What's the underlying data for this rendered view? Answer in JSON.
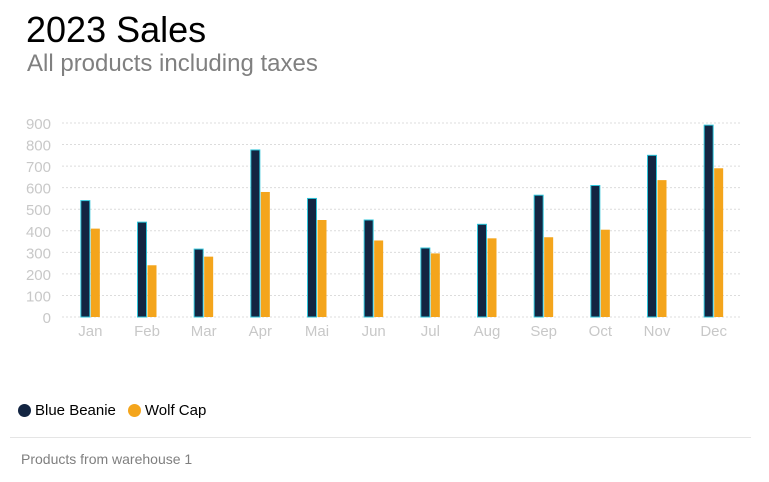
{
  "chart_data": {
    "type": "bar",
    "title": "2023 Sales",
    "subtitle": "All products including taxes",
    "categories": [
      "Jan",
      "Feb",
      "Mar",
      "Apr",
      "Mai",
      "Jun",
      "Jul",
      "Aug",
      "Sep",
      "Oct",
      "Nov",
      "Dec"
    ],
    "series": [
      {
        "name": "Blue Beanie",
        "color": "#132542",
        "outline": "#2ec4d9",
        "values": [
          540,
          440,
          315,
          775,
          550,
          450,
          320,
          430,
          565,
          610,
          750,
          890
        ]
      },
      {
        "name": "Wolf Cap",
        "color": "#f4a51c",
        "values": [
          410,
          240,
          280,
          580,
          450,
          355,
          295,
          365,
          370,
          405,
          635,
          690
        ]
      }
    ],
    "y_ticks": [
      "0",
      "100",
      "200",
      "300",
      "400",
      "500",
      "600",
      "700",
      "800",
      "900"
    ],
    "ylim": [
      0,
      900
    ],
    "grid": true,
    "legend_position": "bottom-left",
    "footer": "Products from warehouse 1"
  }
}
